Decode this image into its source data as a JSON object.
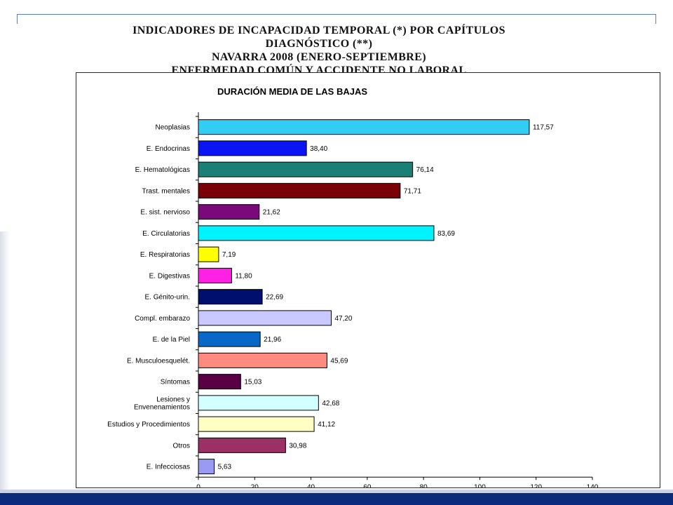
{
  "header": {
    "lines": [
      "INDICADORES DE INCAPACIDAD TEMPORAL (*) POR CAPÍTULOS",
      "DIAGNÓSTICO (**)",
      "NAVARRA 2008 (ENERO-SEPTIEMBRE)",
      "ENFERMEDAD COMÚN Y ACCIDENTE NO LABORAL"
    ]
  },
  "chart_data": {
    "type": "bar",
    "orientation": "horizontal",
    "title": "DURACIÓN MEDIA DE LAS BAJAS",
    "xlim": [
      0,
      140
    ],
    "x_ticks": [
      "0",
      "20",
      "40",
      "60",
      "80",
      "100",
      "120",
      "140"
    ],
    "grid": false,
    "categories": [
      [
        "Neoplasias"
      ],
      [
        "E. Endocrinas"
      ],
      [
        "E. Hematológicas"
      ],
      [
        "Trast. mentales"
      ],
      [
        "E. sist. nervioso"
      ],
      [
        "E. Circulatorias"
      ],
      [
        "E. Respiratorias"
      ],
      [
        "E. Digestivas"
      ],
      [
        "E. Génito-urin."
      ],
      [
        "Compl. embarazo"
      ],
      [
        "E. de la Piel"
      ],
      [
        "E. Musculoesquelét."
      ],
      [
        "Síntomas"
      ],
      [
        "Lesiones y",
        "Envenenamientos"
      ],
      [
        "Estudios y Procedimientos"
      ],
      [
        "Otros"
      ],
      [
        "E. Infecciosas"
      ]
    ],
    "values": [
      117.57,
      38.4,
      76.14,
      71.71,
      21.62,
      83.69,
      7.19,
      11.8,
      22.69,
      47.2,
      21.96,
      45.69,
      15.03,
      42.68,
      41.12,
      30.98,
      5.63
    ],
    "value_labels": [
      "117,57",
      "38,40",
      "76,14",
      "71,71",
      "21,62",
      "83,69",
      "7,19",
      "11,80",
      "22,69",
      "47,20",
      "21,96",
      "45,69",
      "15,03",
      "42,68",
      "41,12",
      "30,98",
      "5,63"
    ],
    "colors": [
      "#33ccf2",
      "#0b14f2",
      "#1a8076",
      "#7a0008",
      "#7a0a7a",
      "#00f4ff",
      "#ffff00",
      "#ff20e6",
      "#000e6e",
      "#c9c9ff",
      "#0868c8",
      "#ff8a80",
      "#5a0044",
      "#d2ffff",
      "#ffffc4",
      "#9a3064",
      "#9a9af2"
    ]
  }
}
